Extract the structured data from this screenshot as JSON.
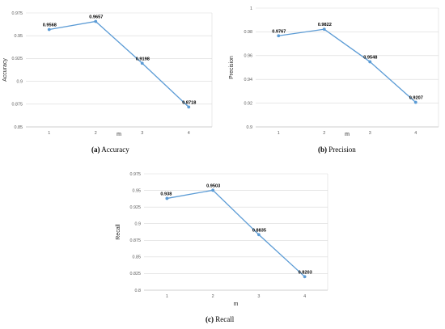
{
  "line_color": "#5b9bd5",
  "chart_data": [
    {
      "type": "line",
      "caption_tag": "(a)",
      "caption_text": "Accuracy",
      "xlabel": "m",
      "ylabel": "Accuracy",
      "x": [
        1,
        2,
        3,
        4
      ],
      "x_ticks": [
        "1",
        "2",
        "3",
        "4"
      ],
      "values": [
        0.9568,
        0.9657,
        0.9198,
        0.8718
      ],
      "data_labels": [
        "0.9568",
        "0.9657",
        "0.9198",
        "0.8718"
      ],
      "ylim": [
        0.85,
        0.975
      ],
      "y_ticks": [
        0.85,
        0.875,
        0.9,
        0.925,
        0.95,
        0.975
      ],
      "y_tick_labels": [
        "0.85",
        "0.875",
        "0.9",
        "0.925",
        "0.95",
        "0.975"
      ],
      "grid": true
    },
    {
      "type": "line",
      "caption_tag": "(b)",
      "caption_text": "Precision",
      "xlabel": "m",
      "ylabel": "Precision",
      "x": [
        1,
        2,
        3,
        4
      ],
      "x_ticks": [
        "1",
        "2",
        "3",
        "4"
      ],
      "values": [
        0.9767,
        0.9822,
        0.9548,
        0.9207
      ],
      "data_labels": [
        "0.9767",
        "0.9822",
        "0.9548",
        "0.9207"
      ],
      "ylim": [
        0.9,
        1.0
      ],
      "y_ticks": [
        0.9,
        0.92,
        0.94,
        0.96,
        0.98,
        1.0
      ],
      "y_tick_labels": [
        "0.9",
        "0.92",
        "0.94",
        "0.96",
        "0.98",
        "1"
      ],
      "grid": true
    },
    {
      "type": "line",
      "caption_tag": "(c)",
      "caption_text": "Recall",
      "xlabel": "m",
      "ylabel": "Recall",
      "x": [
        1,
        2,
        3,
        4
      ],
      "x_ticks": [
        "1",
        "2",
        "3",
        "4"
      ],
      "values": [
        0.938,
        0.9503,
        0.8835,
        0.8203
      ],
      "data_labels": [
        "0.938",
        "0.9503",
        "0.8835",
        "0.8203"
      ],
      "ylim": [
        0.8,
        0.975
      ],
      "y_ticks": [
        0.8,
        0.825,
        0.85,
        0.875,
        0.9,
        0.925,
        0.95,
        0.975
      ],
      "y_tick_labels": [
        "0.8",
        "0.825",
        "0.85",
        "0.875",
        "0.9",
        "0.925",
        "0.95",
        "0.975"
      ],
      "grid": true
    }
  ]
}
